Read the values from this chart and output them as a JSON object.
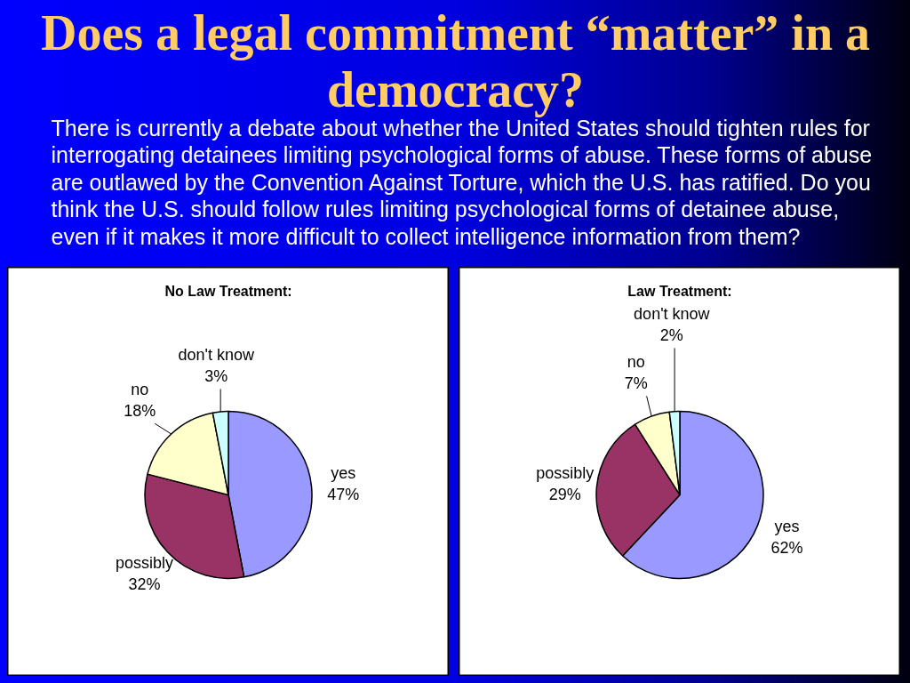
{
  "chart_data": [
    {
      "type": "other",
      "title": "Does a legal commitment “matter” in a democracy?",
      "annotations": [
        "There is currently a debate about whether the United States should tighten rules for interrogating detainees limiting psychological forms of abuse. These forms of abuse are outlawed by the Convention Against Torture, which the U.S. has ratified. Do you think the U.S. should follow rules limiting psychological forms of detainee abuse, even if it makes it more difficult to collect intelligence information from them?"
      ]
    },
    {
      "type": "pie",
      "title": "No Law Treatment:",
      "categories": [
        "yes",
        "possibly",
        "no",
        "don't know"
      ],
      "values": [
        47,
        32,
        18,
        3
      ],
      "colors": [
        "#9999ff",
        "#993366",
        "#ffffcc",
        "#ccffff"
      ],
      "value_labels": [
        "47%",
        "32%",
        "18%",
        "3%"
      ]
    },
    {
      "type": "pie",
      "title": "Law Treatment:",
      "categories": [
        "yes",
        "possibly",
        "no",
        "don't know"
      ],
      "values": [
        62,
        29,
        7,
        2
      ],
      "colors": [
        "#9999ff",
        "#993366",
        "#ffffcc",
        "#ccffff"
      ],
      "value_labels": [
        "62%",
        "29%",
        "7%",
        "2%"
      ]
    }
  ]
}
